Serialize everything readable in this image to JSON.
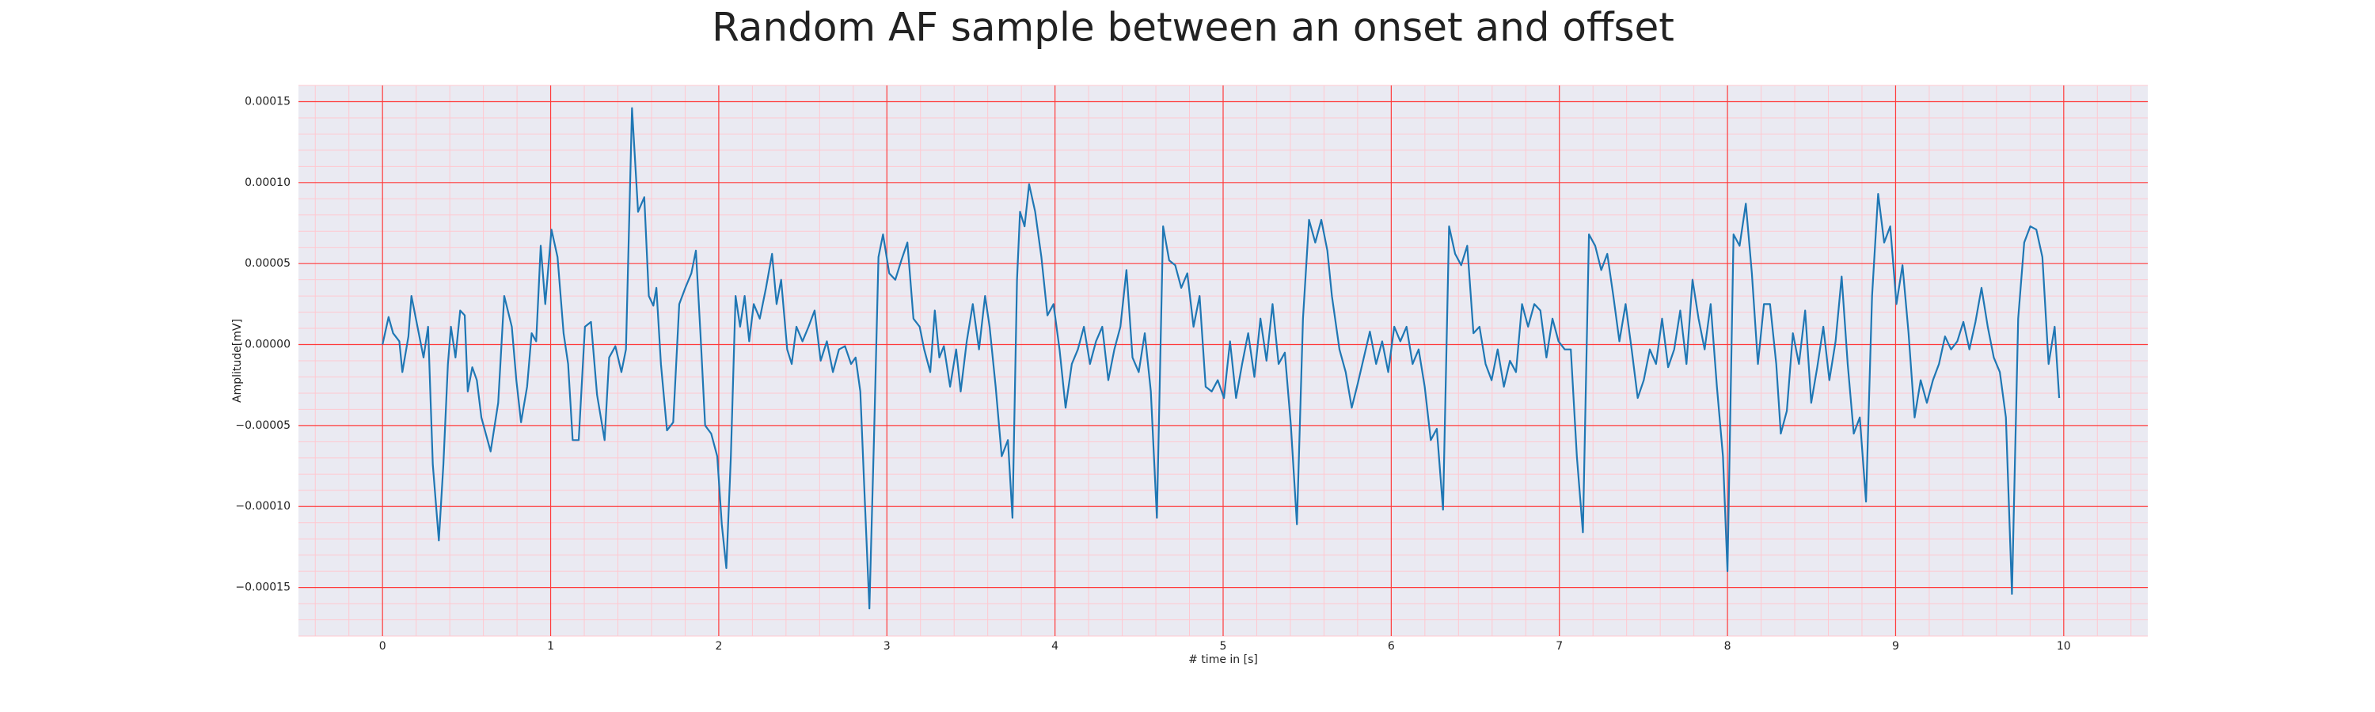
{
  "chart_data": {
    "type": "line",
    "title": "Random AF sample between an onset and offset",
    "x_label": "# time in [s]",
    "y_label": "Amplitude[mV]",
    "color": "#1f77b4",
    "grid": true,
    "grid_color": "#ff3b3b",
    "minor_grid": true,
    "minor_grid_color": "#ffc8d0",
    "background": "#eaeaf2",
    "xlim": [
      -0.5,
      10.5
    ],
    "ylim": [
      -0.00018,
      0.00016
    ],
    "xticks": [
      0,
      1,
      2,
      3,
      4,
      5,
      6,
      7,
      8,
      9,
      10
    ],
    "yticks": [
      {
        "value": -0.00015,
        "label": "−0.00015"
      },
      {
        "value": -0.0001,
        "label": "−0.00010"
      },
      {
        "value": -5e-05,
        "label": "−0.00005"
      },
      {
        "value": 0,
        "label": "0.00000"
      },
      {
        "value": 5e-05,
        "label": "0.00005"
      },
      {
        "value": 0.0001,
        "label": "0.00010"
      },
      {
        "value": 0.00015,
        "label": "0.00015"
      }
    ],
    "x": [
      0,
      0.036,
      0.063,
      0.1,
      0.118,
      0.154,
      0.172,
      0.208,
      0.244,
      0.271,
      0.299,
      0.335,
      0.362,
      0.389,
      0.407,
      0.434,
      0.462,
      0.489,
      0.507,
      0.534,
      0.561,
      0.588,
      0.643,
      0.688,
      0.724,
      0.769,
      0.796,
      0.824,
      0.86,
      0.887,
      0.914,
      0.941,
      0.968,
      1.005,
      1.041,
      1.077,
      1.104,
      1.131,
      1.167,
      1.204,
      1.24,
      1.276,
      1.321,
      1.348,
      1.385,
      1.421,
      1.448,
      1.484,
      1.52,
      1.557,
      1.584,
      1.611,
      1.629,
      1.656,
      1.692,
      1.729,
      1.765,
      1.801,
      1.837,
      1.864,
      1.891,
      1.919,
      1.955,
      1.991,
      2.018,
      2.045,
      2.072,
      2.1,
      2.127,
      2.154,
      2.181,
      2.208,
      2.244,
      2.281,
      2.317,
      2.344,
      2.371,
      2.407,
      2.434,
      2.462,
      2.498,
      2.534,
      2.57,
      2.606,
      2.643,
      2.679,
      2.715,
      2.751,
      2.787,
      2.814,
      2.842,
      2.869,
      2.896,
      2.923,
      2.95,
      2.977,
      3.014,
      3.05,
      3.086,
      3.122,
      3.158,
      3.195,
      3.222,
      3.258,
      3.285,
      3.312,
      3.339,
      3.376,
      3.412,
      3.439,
      3.475,
      3.511,
      3.548,
      3.584,
      3.611,
      3.647,
      3.683,
      3.72,
      3.747,
      3.774,
      3.792,
      3.819,
      3.846,
      3.882,
      3.919,
      3.955,
      3.991,
      4.027,
      4.063,
      4.1,
      4.136,
      4.172,
      4.208,
      4.244,
      4.281,
      4.317,
      4.353,
      4.389,
      4.425,
      4.461,
      4.498,
      4.534,
      4.57,
      4.606,
      4.643,
      4.679,
      4.715,
      4.751,
      4.787,
      4.824,
      4.86,
      4.896,
      4.932,
      4.968,
      5.005,
      5.041,
      5.077,
      5.113,
      5.149,
      5.186,
      5.222,
      5.258,
      5.294,
      5.33,
      5.367,
      5.403,
      5.439,
      5.475,
      5.511,
      5.548,
      5.584,
      5.62,
      5.647,
      5.692,
      5.729,
      5.765,
      5.801,
      5.837,
      5.873,
      5.91,
      5.946,
      5.982,
      6.018,
      6.054,
      6.091,
      6.127,
      6.163,
      6.199,
      6.235,
      6.271,
      6.308,
      6.344,
      6.38,
      6.416,
      6.452,
      6.489,
      6.525,
      6.561,
      6.597,
      6.633,
      6.67,
      6.706,
      6.742,
      6.778,
      6.814,
      6.851,
      6.887,
      6.923,
      6.959,
      6.995,
      7.032,
      7.068,
      7.104,
      7.14,
      7.176,
      7.213,
      7.249,
      7.285,
      7.321,
      7.357,
      7.394,
      7.43,
      7.466,
      7.502,
      7.538,
      7.575,
      7.611,
      7.647,
      7.683,
      7.719,
      7.756,
      7.792,
      7.828,
      7.864,
      7.9,
      7.937,
      7.973,
      8.0,
      8.036,
      8.072,
      8.109,
      8.145,
      8.181,
      8.217,
      8.253,
      8.29,
      8.317,
      8.353,
      8.389,
      8.425,
      8.462,
      8.498,
      8.534,
      8.57,
      8.606,
      8.643,
      8.679,
      8.715,
      8.751,
      8.787,
      8.824,
      8.86,
      8.896,
      8.932,
      8.968,
      9.005,
      9.041,
      9.077,
      9.113,
      9.149,
      9.186,
      9.222,
      9.258,
      9.294,
      9.33,
      9.367,
      9.403,
      9.439,
      9.475,
      9.511,
      9.548,
      9.584,
      9.62,
      9.656,
      9.692,
      9.729,
      9.765,
      9.801,
      9.837,
      9.873,
      9.91,
      9.946,
      9.973
    ],
    "values": [
      0,
      1.7e-05,
      7e-06,
      2e-06,
      -1.7e-05,
      5e-06,
      3e-05,
      1.1e-05,
      -8e-06,
      1.1e-05,
      -7.4e-05,
      -0.000121,
      -7.4e-05,
      -1.2e-05,
      1.1e-05,
      -8e-06,
      2.1e-05,
      1.8e-05,
      -2.9e-05,
      -1.4e-05,
      -2.2e-05,
      -4.5e-05,
      -6.6e-05,
      -3.6e-05,
      3e-05,
      1.1e-05,
      -2.2e-05,
      -4.8e-05,
      -2.6e-05,
      7e-06,
      2e-06,
      6.1e-05,
      2.5e-05,
      7.1e-05,
      5.4e-05,
      7e-06,
      -1.2e-05,
      -5.9e-05,
      -5.9e-05,
      1.1e-05,
      1.4e-05,
      -3.1e-05,
      -5.9e-05,
      -8e-06,
      -1e-06,
      -1.7e-05,
      -3e-06,
      0.000146,
      8.2e-05,
      9.1e-05,
      3e-05,
      2.4e-05,
      3.5e-05,
      -1.2e-05,
      -5.3e-05,
      -4.8e-05,
      2.5e-05,
      3.5e-05,
      4.4e-05,
      5.8e-05,
      7e-06,
      -5e-05,
      -5.5e-05,
      -6.9e-05,
      -0.000111,
      -0.000138,
      -6.9e-05,
      3e-05,
      1.1e-05,
      3e-05,
      2e-06,
      2.5e-05,
      1.6e-05,
      3.5e-05,
      5.6e-05,
      2.5e-05,
      4e-05,
      -3e-06,
      -1.2e-05,
      1.1e-05,
      2e-06,
      1.1e-05,
      2.1e-05,
      -1e-05,
      2e-06,
      -1.7e-05,
      -3e-06,
      -1e-06,
      -1.2e-05,
      -8e-06,
      -2.9e-05,
      -9.7e-05,
      -0.000163,
      -5.9e-05,
      5.4e-05,
      6.8e-05,
      4.4e-05,
      4e-05,
      5.2e-05,
      6.3e-05,
      1.6e-05,
      1.1e-05,
      -3e-06,
      -1.7e-05,
      2.1e-05,
      -8e-06,
      -1e-06,
      -2.6e-05,
      -3e-06,
      -2.9e-05,
      2e-06,
      2.5e-05,
      -3e-06,
      3e-05,
      1.1e-05,
      -2.6e-05,
      -6.9e-05,
      -5.9e-05,
      -0.000107,
      4e-05,
      8.2e-05,
      7.3e-05,
      9.9e-05,
      8.2e-05,
      5.4e-05,
      1.8e-05,
      2.5e-05,
      -3e-06,
      -3.9e-05,
      -1.2e-05,
      -3e-06,
      1.1e-05,
      -1.2e-05,
      2e-06,
      1.1e-05,
      -2.2e-05,
      -3e-06,
      1.1e-05,
      4.6e-05,
      -8e-06,
      -1.7e-05,
      7e-06,
      -2.9e-05,
      -0.000107,
      7.3e-05,
      5.2e-05,
      4.9e-05,
      3.5e-05,
      4.4e-05,
      1.1e-05,
      3e-05,
      -2.6e-05,
      -2.9e-05,
      -2.2e-05,
      -3.3e-05,
      2e-06,
      -3.3e-05,
      -1.2e-05,
      7e-06,
      -2e-05,
      1.6e-05,
      -1e-05,
      2.5e-05,
      -1.2e-05,
      -5e-06,
      -5e-05,
      -0.000111,
      1.6e-05,
      7.7e-05,
      6.3e-05,
      7.7e-05,
      5.8e-05,
      3e-05,
      -3e-06,
      -1.7e-05,
      -3.9e-05,
      -2.4e-05,
      -8e-06,
      8e-06,
      -1.2e-05,
      2e-06,
      -1.7e-05,
      1.1e-05,
      2e-06,
      1.1e-05,
      -1.2e-05,
      -3e-06,
      -2.6e-05,
      -5.9e-05,
      -5.2e-05,
      -0.000102,
      7.3e-05,
      5.6e-05,
      4.9e-05,
      6.1e-05,
      7e-06,
      1.1e-05,
      -1.2e-05,
      -2.2e-05,
      -3e-06,
      -2.6e-05,
      -1e-05,
      -1.7e-05,
      2.5e-05,
      1.1e-05,
      2.5e-05,
      2.1e-05,
      -8e-06,
      1.6e-05,
      2e-06,
      -3e-06,
      -3e-06,
      -6.9e-05,
      -0.000116,
      6.8e-05,
      6.1e-05,
      4.6e-05,
      5.6e-05,
      3e-05,
      2e-06,
      2.5e-05,
      -3e-06,
      -3.3e-05,
      -2.2e-05,
      -3e-06,
      -1.2e-05,
      1.6e-05,
      -1.4e-05,
      -3e-06,
      2.1e-05,
      -1.2e-05,
      4e-05,
      1.6e-05,
      -3e-06,
      2.5e-05,
      -2.6e-05,
      -6.9e-05,
      -0.00014,
      6.8e-05,
      6.1e-05,
      8.7e-05,
      4.4e-05,
      -1.2e-05,
      2.5e-05,
      2.5e-05,
      -1.2e-05,
      -5.5e-05,
      -4.1e-05,
      7e-06,
      -1.2e-05,
      2.1e-05,
      -3.6e-05,
      -1.4e-05,
      1.1e-05,
      -2.2e-05,
      2e-06,
      4.2e-05,
      -1.2e-05,
      -5.5e-05,
      -4.5e-05,
      -9.7e-05,
      3e-05,
      9.3e-05,
      6.3e-05,
      7.3e-05,
      2.5e-05,
      4.9e-05,
      7e-06,
      -4.5e-05,
      -2.2e-05,
      -3.6e-05,
      -2.2e-05,
      -1.2e-05,
      5e-06,
      -3e-06,
      2e-06,
      1.4e-05,
      -3e-06,
      1.4e-05,
      3.5e-05,
      1.1e-05,
      -8e-06,
      -1.7e-05,
      -4.5e-05,
      -0.000154,
      1.6e-05,
      6.3e-05,
      7.3e-05,
      7.1e-05,
      5.4e-05,
      -1.2e-05,
      1.1e-05,
      -3.3e-05
    ]
  }
}
